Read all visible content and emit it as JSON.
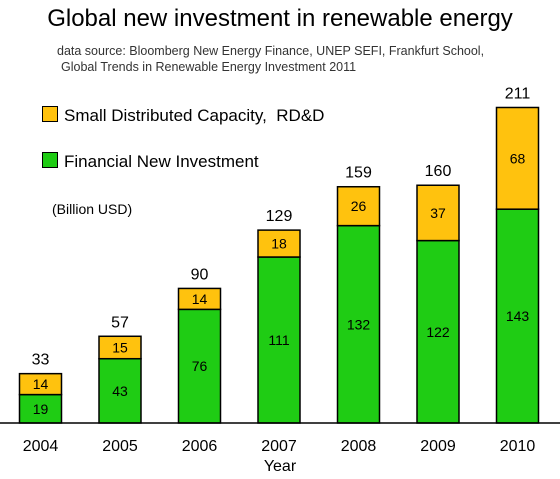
{
  "title": "Global new investment in renewable energy",
  "source_lines": [
    "data source: Bloomberg New Energy Finance, UNEP SEFI, Frankfurt School,",
    "Global Trends in Renewable Energy Investment 2011"
  ],
  "unit_label": "(Billion USD)",
  "chart_data": {
    "type": "bar",
    "stacked": true,
    "categories": [
      "2004",
      "2005",
      "2006",
      "2007",
      "2008",
      "2009",
      "2010"
    ],
    "series": [
      {
        "name": "Financial New Investment",
        "color": "#1fcc14",
        "values": [
          19,
          43,
          76,
          111,
          132,
          122,
          143
        ]
      },
      {
        "name": "Small Distributed Capacity,  RD&D",
        "color": "#ffc20e",
        "values": [
          14,
          15,
          14,
          18,
          26,
          37,
          68
        ]
      }
    ],
    "totals": [
      33,
      57,
      90,
      129,
      159,
      160,
      211
    ],
    "xlabel": "Year",
    "ylabel": "",
    "legend_position": "top-left",
    "grid": false
  }
}
